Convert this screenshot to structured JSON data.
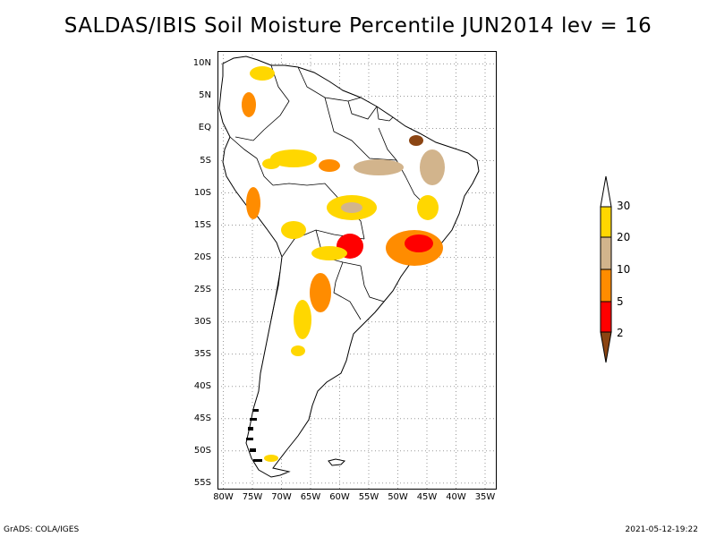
{
  "title": "SALDAS/IBIS Soil Moisture Percentile JUN2014 lev = 16",
  "map": {
    "region": "South America",
    "lat_range": [
      -56,
      12
    ],
    "lon_range": [
      -81,
      -33
    ],
    "lat_ticks": [
      "10N",
      "5N",
      "EQ",
      "5S",
      "10S",
      "15S",
      "20S",
      "25S",
      "30S",
      "35S",
      "40S",
      "45S",
      "50S",
      "55S"
    ],
    "lat_values": [
      10,
      5,
      0,
      -5,
      -10,
      -15,
      -20,
      -25,
      -30,
      -35,
      -40,
      -45,
      -50,
      -55
    ],
    "lon_ticks": [
      "80W",
      "75W",
      "70W",
      "65W",
      "60W",
      "55W",
      "50W",
      "45W",
      "40W",
      "35W"
    ],
    "lon_values": [
      -80,
      -75,
      -70,
      -65,
      -60,
      -55,
      -50,
      -45,
      -40,
      -35
    ]
  },
  "colorbar": {
    "labels": [
      "30",
      "20",
      "10",
      "5",
      "2"
    ],
    "colors": {
      "above_30": "#ffffff",
      "c20_30": "#ffd700",
      "c10_20": "#d2b48c",
      "c5_10": "#ff8c00",
      "c2_5": "#ff0000",
      "below_2": "#8b4513"
    }
  },
  "footer": {
    "left": "GrADS: COLA/IGES",
    "right": "2021-05-12-19:22"
  }
}
